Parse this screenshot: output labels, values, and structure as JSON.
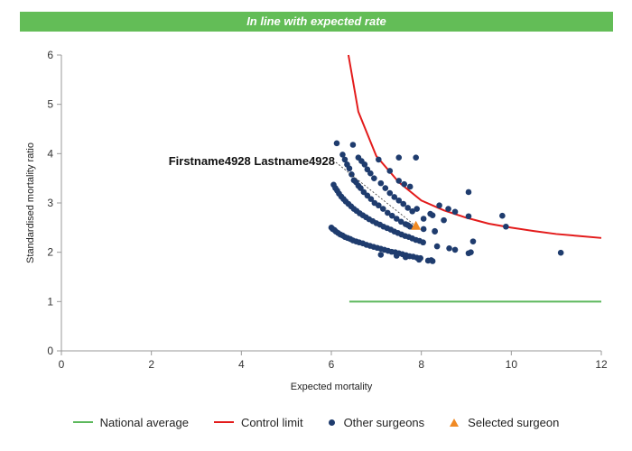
{
  "banner": {
    "text": "In line with expected rate"
  },
  "colors": {
    "banner": "#63bd57",
    "national": "#5cb85c",
    "control": "#e31b1b",
    "others": "#1f3c6e",
    "selected": "#f08a24"
  },
  "chart_data": {
    "type": "scatter",
    "xlabel": "Expected mortality",
    "ylabel": "Standardised mortality ratio",
    "xlim": [
      0,
      12
    ],
    "ylim": [
      0,
      6
    ],
    "xticks": [
      0,
      2,
      4,
      6,
      8,
      10,
      12
    ],
    "yticks": [
      0,
      1,
      2,
      3,
      4,
      5,
      6
    ],
    "grid": false,
    "legend_position": "bottom",
    "annotation": {
      "text": "Firstname4928 Lastname4928",
      "x": 7.88,
      "y": 2.53
    },
    "series": [
      {
        "name": "National average",
        "kind": "line",
        "x": [
          6.4,
          12
        ],
        "y": [
          1.0,
          1.0
        ]
      },
      {
        "name": "Control limit",
        "kind": "line",
        "x": [
          6.38,
          6.6,
          7.0,
          7.5,
          8.0,
          8.5,
          9.0,
          9.5,
          10.0,
          10.5,
          11.0,
          11.5,
          12.0
        ],
        "y": [
          6.0,
          4.85,
          3.95,
          3.42,
          3.05,
          2.85,
          2.7,
          2.58,
          2.5,
          2.43,
          2.37,
          2.33,
          2.29
        ]
      },
      {
        "name": "Other surgeons",
        "kind": "scatter",
        "points": [
          [
            6.0,
            2.5
          ],
          [
            6.03,
            2.47
          ],
          [
            6.07,
            2.45
          ],
          [
            6.1,
            2.42
          ],
          [
            6.15,
            2.39
          ],
          [
            6.2,
            2.36
          ],
          [
            6.25,
            2.34
          ],
          [
            6.3,
            2.31
          ],
          [
            6.36,
            2.29
          ],
          [
            6.42,
            2.27
          ],
          [
            6.48,
            2.24
          ],
          [
            6.55,
            2.22
          ],
          [
            6.62,
            2.2
          ],
          [
            6.7,
            2.18
          ],
          [
            6.78,
            2.15
          ],
          [
            6.86,
            2.13
          ],
          [
            6.94,
            2.11
          ],
          [
            7.02,
            2.09
          ],
          [
            7.1,
            2.07
          ],
          [
            7.18,
            2.05
          ],
          [
            7.26,
            2.03
          ],
          [
            7.34,
            2.01
          ],
          [
            7.42,
            2.0
          ],
          [
            7.5,
            1.98
          ],
          [
            7.58,
            1.96
          ],
          [
            7.66,
            1.94
          ],
          [
            7.74,
            1.92
          ],
          [
            7.82,
            1.91
          ],
          [
            7.9,
            1.89
          ],
          [
            7.98,
            1.88
          ],
          [
            7.1,
            1.95
          ],
          [
            7.45,
            1.93
          ],
          [
            7.65,
            1.9
          ],
          [
            7.95,
            1.85
          ],
          [
            8.15,
            1.83
          ],
          [
            8.25,
            1.82
          ],
          [
            8.22,
            1.84
          ],
          [
            6.05,
            3.37
          ],
          [
            6.09,
            3.3
          ],
          [
            6.13,
            3.25
          ],
          [
            6.17,
            3.19
          ],
          [
            6.22,
            3.13
          ],
          [
            6.27,
            3.08
          ],
          [
            6.32,
            3.03
          ],
          [
            6.38,
            2.98
          ],
          [
            6.44,
            2.93
          ],
          [
            6.5,
            2.88
          ],
          [
            6.56,
            2.84
          ],
          [
            6.63,
            2.79
          ],
          [
            6.7,
            2.75
          ],
          [
            6.77,
            2.71
          ],
          [
            6.84,
            2.67
          ],
          [
            6.92,
            2.63
          ],
          [
            7.0,
            2.59
          ],
          [
            7.08,
            2.56
          ],
          [
            7.16,
            2.52
          ],
          [
            7.24,
            2.49
          ],
          [
            7.32,
            2.46
          ],
          [
            7.4,
            2.42
          ],
          [
            7.48,
            2.39
          ],
          [
            7.56,
            2.36
          ],
          [
            7.64,
            2.33
          ],
          [
            7.72,
            2.31
          ],
          [
            7.8,
            2.28
          ],
          [
            7.88,
            2.25
          ],
          [
            7.96,
            2.23
          ],
          [
            8.04,
            2.2
          ],
          [
            6.45,
            3.58
          ],
          [
            6.5,
            3.46
          ],
          [
            6.55,
            3.42
          ],
          [
            6.6,
            3.35
          ],
          [
            6.65,
            3.3
          ],
          [
            6.72,
            3.22
          ],
          [
            6.8,
            3.15
          ],
          [
            6.88,
            3.08
          ],
          [
            6.96,
            3.0
          ],
          [
            7.05,
            2.95
          ],
          [
            7.15,
            2.88
          ],
          [
            7.25,
            2.8
          ],
          [
            7.35,
            2.74
          ],
          [
            7.45,
            2.68
          ],
          [
            7.55,
            2.62
          ],
          [
            7.65,
            2.57
          ],
          [
            7.7,
            2.55
          ],
          [
            7.75,
            2.52
          ],
          [
            8.05,
            2.47
          ],
          [
            8.3,
            2.42
          ],
          [
            6.25,
            3.98
          ],
          [
            6.3,
            3.88
          ],
          [
            6.35,
            3.78
          ],
          [
            6.4,
            3.7
          ],
          [
            6.6,
            3.92
          ],
          [
            6.67,
            3.85
          ],
          [
            6.74,
            3.78
          ],
          [
            6.8,
            3.68
          ],
          [
            6.87,
            3.6
          ],
          [
            6.95,
            3.5
          ],
          [
            7.1,
            3.4
          ],
          [
            7.2,
            3.3
          ],
          [
            7.3,
            3.2
          ],
          [
            7.4,
            3.12
          ],
          [
            7.5,
            3.05
          ],
          [
            7.6,
            2.98
          ],
          [
            7.7,
            2.9
          ],
          [
            7.8,
            2.83
          ],
          [
            6.12,
            4.21
          ],
          [
            6.48,
            4.18
          ],
          [
            7.05,
            3.88
          ],
          [
            7.3,
            3.65
          ],
          [
            7.5,
            3.92
          ],
          [
            7.88,
            3.92
          ],
          [
            7.5,
            3.45
          ],
          [
            7.62,
            3.38
          ],
          [
            7.75,
            3.33
          ],
          [
            7.9,
            2.88
          ],
          [
            8.05,
            2.68
          ],
          [
            8.2,
            2.78
          ],
          [
            8.25,
            2.75
          ],
          [
            8.3,
            2.43
          ],
          [
            8.35,
            2.12
          ],
          [
            8.4,
            2.95
          ],
          [
            8.5,
            2.65
          ],
          [
            8.6,
            2.88
          ],
          [
            8.62,
            2.08
          ],
          [
            8.75,
            2.82
          ],
          [
            8.75,
            2.05
          ],
          [
            9.05,
            3.22
          ],
          [
            9.05,
            2.73
          ],
          [
            9.05,
            1.98
          ],
          [
            9.1,
            2.0
          ],
          [
            9.15,
            2.22
          ],
          [
            9.8,
            2.74
          ],
          [
            9.88,
            2.52
          ],
          [
            11.1,
            1.99
          ]
        ]
      },
      {
        "name": "Selected surgeon",
        "kind": "scatter",
        "points": [
          [
            7.88,
            2.53
          ]
        ]
      }
    ]
  }
}
